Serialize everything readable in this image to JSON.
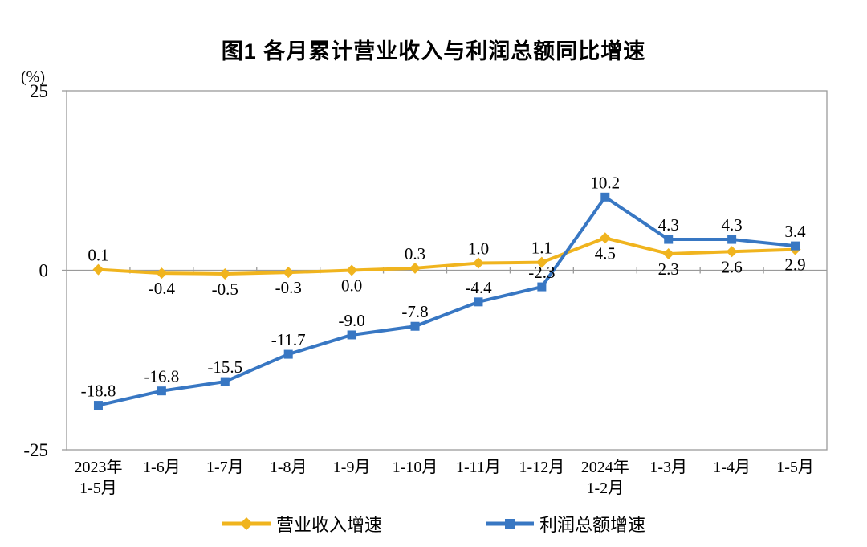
{
  "title": "图1  各月累计营业收入与利润总额同比增速",
  "unit_label": "(%)",
  "colors": {
    "revenue_line": "#F0B41E",
    "profit_line": "#3877C3",
    "axis_gray": "#9a9a9a",
    "text": "#000000"
  },
  "legend": [
    {
      "label": "营业收入增速",
      "color": "#F0B41E",
      "marker": "diamond"
    },
    {
      "label": "利润总额增速",
      "color": "#3877C3",
      "marker": "square"
    }
  ],
  "chart_data": {
    "type": "line",
    "title": "图1  各月累计营业收入与利润总额同比增速",
    "unit": "(%)",
    "xlabel": "",
    "ylabel": "",
    "categories": [
      [
        "2023年",
        "1-5月"
      ],
      [
        "1-6月"
      ],
      [
        "1-7月"
      ],
      [
        "1-8月"
      ],
      [
        "1-9月"
      ],
      [
        "1-10月"
      ],
      [
        "1-11月"
      ],
      [
        "1-12月"
      ],
      [
        "2024年",
        "1-2月"
      ],
      [
        "1-3月"
      ],
      [
        "1-4月"
      ],
      [
        "1-5月"
      ]
    ],
    "series": [
      {
        "name": "营业收入增速",
        "color": "#F0B41E",
        "marker": "diamond",
        "values": [
          0.1,
          -0.4,
          -0.5,
          -0.3,
          0.0,
          0.3,
          1.0,
          1.1,
          4.5,
          2.3,
          2.6,
          2.9
        ],
        "label_pos": [
          "above",
          "below",
          "below",
          "below",
          "below",
          "above",
          "above",
          "above",
          "below",
          "below",
          "below",
          "below"
        ]
      },
      {
        "name": "利润总额增速",
        "color": "#3877C3",
        "marker": "square",
        "values": [
          -18.8,
          -16.8,
          -15.5,
          -11.7,
          -9.0,
          -7.8,
          -4.4,
          -2.3,
          10.2,
          4.3,
          4.3,
          3.4
        ],
        "label_pos": [
          "above",
          "above",
          "above",
          "above",
          "above",
          "above",
          "above",
          "above",
          "above",
          "above",
          "above",
          "above"
        ]
      }
    ],
    "ylim": [
      -25,
      25
    ],
    "yticks": [
      25,
      0,
      -25
    ],
    "grid": false,
    "legend_position": "bottom"
  }
}
